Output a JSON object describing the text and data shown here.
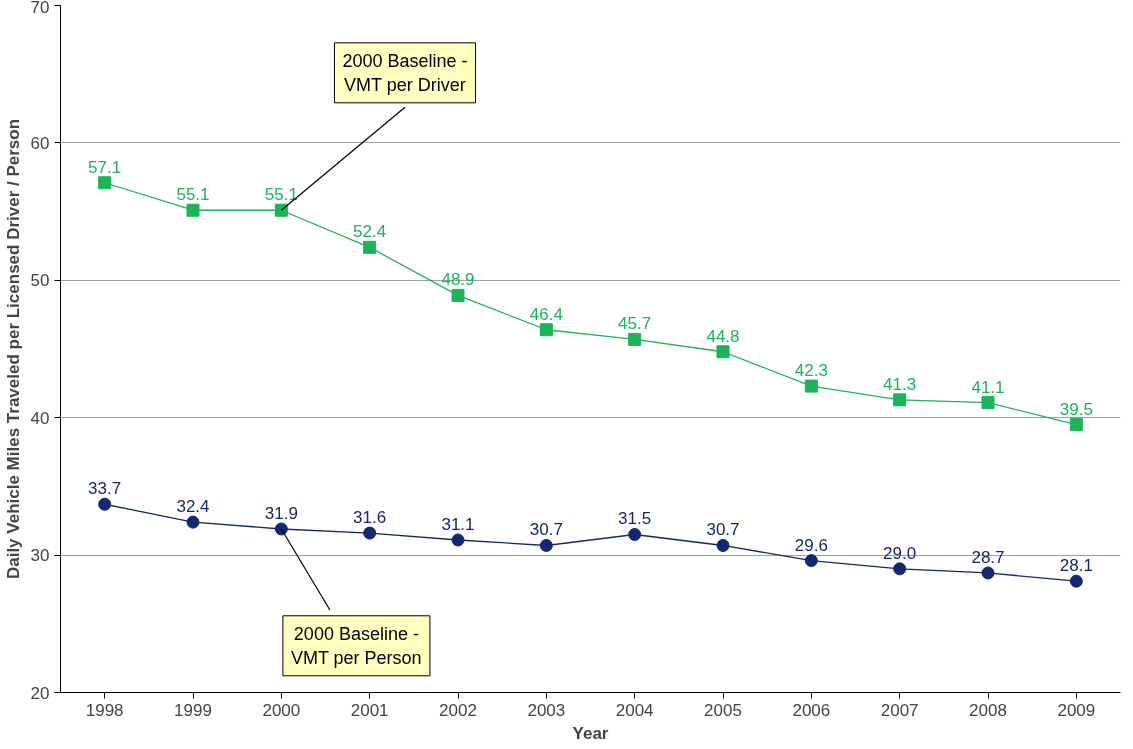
{
  "chart_data": {
    "type": "line",
    "xlabel": "Year",
    "ylabel": "Daily Vehicle Miles Traveled per Licensed Driver / Person",
    "categories": [
      "1998",
      "1999",
      "2000",
      "2001",
      "2002",
      "2003",
      "2004",
      "2005",
      "2006",
      "2007",
      "2008",
      "2009"
    ],
    "series": [
      {
        "color": "#1db35a",
        "marker": "square",
        "values": [
          57.1,
          55.1,
          55.1,
          52.4,
          48.9,
          46.4,
          45.7,
          44.8,
          42.3,
          41.3,
          41.1,
          39.5
        ],
        "value_labels": [
          "57.1",
          "55.1",
          "55.1",
          "52.4",
          "48.9",
          "46.4",
          "45.7",
          "44.8",
          "42.3",
          "41.3",
          "41.1",
          "39.5"
        ]
      },
      {
        "color": "#14286e",
        "marker": "circle",
        "values": [
          33.7,
          32.4,
          31.9,
          31.6,
          31.1,
          30.7,
          31.5,
          30.7,
          29.6,
          29.0,
          28.7,
          28.1
        ],
        "value_labels": [
          "33.7",
          "32.4",
          "31.9",
          "31.6",
          "31.1",
          "30.7",
          "31.5",
          "30.7",
          "29.6",
          "29.0",
          "28.7",
          "28.1"
        ]
      }
    ],
    "ylim": [
      20,
      70
    ],
    "yticks": [
      20,
      30,
      40,
      50,
      60,
      70
    ],
    "grid": "y",
    "annotations": [
      {
        "text": "2000 Baseline -\nVMT per Driver",
        "x": "2000",
        "y": 55.1
      },
      {
        "text": "2000 Baseline -\nVMT per Person",
        "x": "2000",
        "y": 31.9
      }
    ]
  }
}
